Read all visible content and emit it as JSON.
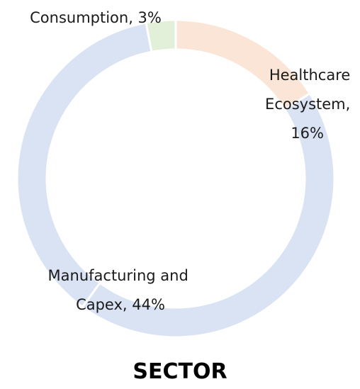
{
  "chart_data": {
    "type": "pie",
    "variant": "donut",
    "title": "SECTOR",
    "slices": [
      {
        "label": "Healthcare Ecosystem",
        "value": 16,
        "value_label": "16%",
        "color": "#fbe5d6",
        "display_lines": [
          "Healthcare",
          "Ecosystem,",
          "16%"
        ]
      },
      {
        "label": "Manufacturing and Capex",
        "value": 44,
        "value_label": "44%",
        "color": "#dae3f3",
        "display_lines": [
          "Manufacturing and",
          "Capex, 44%"
        ]
      },
      {
        "label": "Consumption",
        "value": 3,
        "value_label": "3%",
        "color": "#e2f0d9",
        "display_lines": [
          "Consumption, 3%"
        ]
      }
    ],
    "legend": "none",
    "grid": false
  }
}
